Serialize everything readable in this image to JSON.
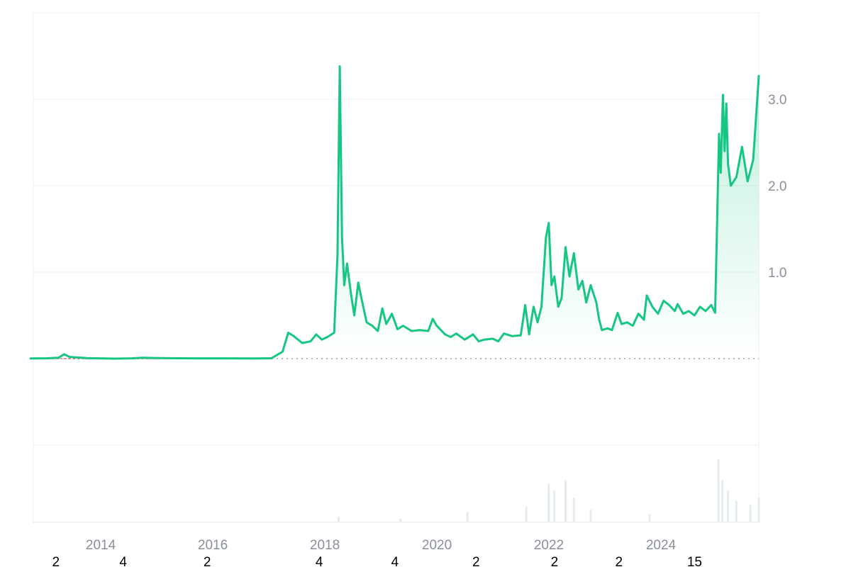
{
  "chart_data": {
    "type": "area",
    "title": "",
    "xlabel": "",
    "ylabel": "",
    "legend": "none",
    "grid": true,
    "ylim": [
      -1.0,
      4.0
    ],
    "xlim": [
      2013.0,
      2025.5
    ],
    "baseline_value": 0.0,
    "x_ticks": [
      {
        "value": 2014,
        "label": "2014"
      },
      {
        "value": 2016,
        "label": "2016"
      },
      {
        "value": 2018,
        "label": "2018"
      },
      {
        "value": 2020,
        "label": "2020"
      },
      {
        "value": 2022,
        "label": "2022"
      },
      {
        "value": 2024,
        "label": "2024"
      }
    ],
    "y_ticks": [
      {
        "value": 1.0,
        "label": "1.0"
      },
      {
        "value": 2.0,
        "label": "2.0"
      },
      {
        "value": 3.0,
        "label": "3.0"
      }
    ],
    "bottom_annotations": [
      {
        "x": 2013.2,
        "label": "2"
      },
      {
        "x": 2014.4,
        "label": "4"
      },
      {
        "x": 2015.9,
        "label": "2"
      },
      {
        "x": 2017.9,
        "label": "4"
      },
      {
        "x": 2019.25,
        "label": "4"
      },
      {
        "x": 2020.7,
        "label": "2"
      },
      {
        "x": 2022.1,
        "label": "2"
      },
      {
        "x": 2023.25,
        "label": "2"
      },
      {
        "x": 2024.6,
        "label": "15"
      }
    ],
    "series": [
      {
        "color": "#16c784",
        "negative_color": "#ea3943",
        "points": [
          [
            2013.0,
            0.002
          ],
          [
            2013.3,
            0.004
          ],
          [
            2013.5,
            0.01
          ],
          [
            2013.6,
            0.05
          ],
          [
            2013.7,
            0.02
          ],
          [
            2014.0,
            0.006
          ],
          [
            2014.5,
            0.0
          ],
          [
            2014.8,
            0.003
          ],
          [
            2015.0,
            0.01
          ],
          [
            2015.2,
            0.007
          ],
          [
            2015.6,
            0.004
          ],
          [
            2016.0,
            0.003
          ],
          [
            2016.5,
            0.003
          ],
          [
            2017.0,
            0.002
          ],
          [
            2017.3,
            0.004
          ],
          [
            2017.5,
            0.08
          ],
          [
            2017.6,
            0.3
          ],
          [
            2017.7,
            0.26
          ],
          [
            2017.85,
            0.18
          ],
          [
            2018.0,
            0.2
          ],
          [
            2018.1,
            0.28
          ],
          [
            2018.2,
            0.22
          ],
          [
            2018.3,
            0.25
          ],
          [
            2018.42,
            0.3
          ],
          [
            2018.48,
            1.2
          ],
          [
            2018.52,
            3.38
          ],
          [
            2018.56,
            1.4
          ],
          [
            2018.6,
            0.85
          ],
          [
            2018.65,
            1.1
          ],
          [
            2018.72,
            0.75
          ],
          [
            2018.78,
            0.5
          ],
          [
            2018.85,
            0.88
          ],
          [
            2018.9,
            0.72
          ],
          [
            2019.0,
            0.42
          ],
          [
            2019.1,
            0.38
          ],
          [
            2019.2,
            0.32
          ],
          [
            2019.28,
            0.58
          ],
          [
            2019.35,
            0.4
          ],
          [
            2019.45,
            0.52
          ],
          [
            2019.55,
            0.34
          ],
          [
            2019.65,
            0.38
          ],
          [
            2019.8,
            0.32
          ],
          [
            2019.95,
            0.33
          ],
          [
            2020.1,
            0.32
          ],
          [
            2020.18,
            0.46
          ],
          [
            2020.25,
            0.38
          ],
          [
            2020.4,
            0.28
          ],
          [
            2020.5,
            0.25
          ],
          [
            2020.6,
            0.29
          ],
          [
            2020.75,
            0.22
          ],
          [
            2020.9,
            0.28
          ],
          [
            2021.0,
            0.2
          ],
          [
            2021.1,
            0.22
          ],
          [
            2021.25,
            0.23
          ],
          [
            2021.35,
            0.2
          ],
          [
            2021.45,
            0.29
          ],
          [
            2021.6,
            0.26
          ],
          [
            2021.75,
            0.27
          ],
          [
            2021.83,
            0.62
          ],
          [
            2021.9,
            0.28
          ],
          [
            2021.98,
            0.6
          ],
          [
            2022.05,
            0.42
          ],
          [
            2022.12,
            0.6
          ],
          [
            2022.2,
            1.4
          ],
          [
            2022.25,
            1.57
          ],
          [
            2022.3,
            0.85
          ],
          [
            2022.35,
            0.95
          ],
          [
            2022.42,
            0.6
          ],
          [
            2022.48,
            0.7
          ],
          [
            2022.55,
            1.29
          ],
          [
            2022.62,
            0.95
          ],
          [
            2022.7,
            1.22
          ],
          [
            2022.78,
            0.8
          ],
          [
            2022.85,
            0.9
          ],
          [
            2022.92,
            0.65
          ],
          [
            2023.0,
            0.85
          ],
          [
            2023.1,
            0.65
          ],
          [
            2023.15,
            0.45
          ],
          [
            2023.2,
            0.33
          ],
          [
            2023.3,
            0.35
          ],
          [
            2023.38,
            0.33
          ],
          [
            2023.48,
            0.53
          ],
          [
            2023.55,
            0.4
          ],
          [
            2023.65,
            0.42
          ],
          [
            2023.75,
            0.38
          ],
          [
            2023.85,
            0.52
          ],
          [
            2023.95,
            0.45
          ],
          [
            2024.0,
            0.73
          ],
          [
            2024.1,
            0.6
          ],
          [
            2024.2,
            0.52
          ],
          [
            2024.3,
            0.67
          ],
          [
            2024.4,
            0.62
          ],
          [
            2024.5,
            0.55
          ],
          [
            2024.55,
            0.63
          ],
          [
            2024.65,
            0.52
          ],
          [
            2024.75,
            0.55
          ],
          [
            2024.85,
            0.5
          ],
          [
            2024.95,
            0.6
          ],
          [
            2025.05,
            0.55
          ],
          [
            2025.15,
            0.62
          ],
          [
            2025.22,
            0.53
          ],
          [
            2025.29,
            2.6
          ],
          [
            2025.32,
            2.15
          ],
          [
            2025.36,
            3.05
          ],
          [
            2025.39,
            2.4
          ],
          [
            2025.42,
            2.95
          ],
          [
            2025.45,
            2.25
          ],
          [
            2025.5,
            2.0
          ],
          [
            2025.6,
            2.1
          ],
          [
            2025.7,
            2.45
          ],
          [
            2025.8,
            2.05
          ],
          [
            2025.9,
            2.3
          ],
          [
            2026.0,
            3.27
          ]
        ]
      }
    ],
    "volume": {
      "color": "#e6ece8",
      "spikes": [
        [
          2018.5,
          0.08
        ],
        [
          2019.6,
          0.05
        ],
        [
          2020.8,
          0.15
        ],
        [
          2021.85,
          0.22
        ],
        [
          2022.25,
          0.55
        ],
        [
          2022.35,
          0.45
        ],
        [
          2022.55,
          0.6
        ],
        [
          2022.7,
          0.35
        ],
        [
          2023.0,
          0.18
        ],
        [
          2024.05,
          0.12
        ],
        [
          2025.28,
          0.9
        ],
        [
          2025.35,
          0.6
        ],
        [
          2025.45,
          0.45
        ],
        [
          2025.6,
          0.3
        ],
        [
          2025.85,
          0.25
        ],
        [
          2026.0,
          0.35
        ]
      ]
    }
  }
}
